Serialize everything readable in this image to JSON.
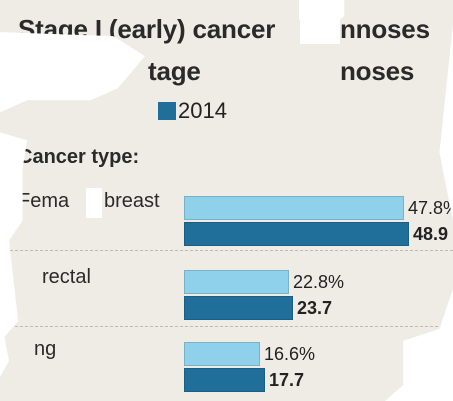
{
  "header": {
    "title_line1_left": "Stage I (early) cancer",
    "title_line1_right": "nnoses",
    "title_line2_left": "tage",
    "title_line2_right": "noses"
  },
  "legend": {
    "label_2014": "2014",
    "color_2014": "#1f6f9a"
  },
  "section_label": "Cancer type:",
  "chart_data": {
    "type": "bar",
    "categories": [
      "Female breast",
      "Colorectal",
      "Lung"
    ],
    "series": [
      {
        "values": [
          47.8,
          22.8,
          16.6
        ],
        "color": "#8fd0ea"
      },
      {
        "name": "2014",
        "values": [
          48.9,
          23.7,
          17.7
        ],
        "color": "#1f6f9a"
      }
    ],
    "value_labels": [
      [
        "47.8%",
        "48.9"
      ],
      [
        "22.8%",
        "23.7"
      ],
      [
        "16.6%",
        "17.7"
      ]
    ],
    "visible_category_labels": [
      "Fema",
      "breast",
      "rectal",
      "ng"
    ],
    "orientation": "horizontal",
    "xlim": [
      0,
      50
    ]
  }
}
